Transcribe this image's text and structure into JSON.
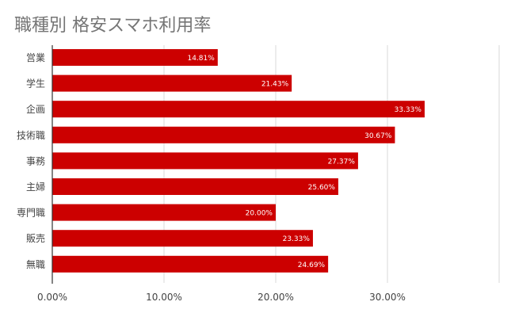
{
  "chart_data": {
    "type": "bar",
    "orientation": "horizontal",
    "title": "職種別 格安スマホ利用率",
    "categories": [
      "営業",
      "学生",
      "企画",
      "技術職",
      "事務",
      "主婦",
      "専門職",
      "販売",
      "無職"
    ],
    "values": [
      14.81,
      21.43,
      33.33,
      30.67,
      27.37,
      25.6,
      20.0,
      23.33,
      24.69
    ],
    "data_labels": [
      "14.81%",
      "21.43%",
      "33.33%",
      "30.67%",
      "27.37%",
      "25.60%",
      "20.00%",
      "23.33%",
      "24.69%"
    ],
    "x_ticks": [
      0,
      10,
      20,
      30
    ],
    "x_tick_labels": [
      "0.00%",
      "10.00%",
      "20.00%",
      "30.00%"
    ],
    "xlim": [
      0,
      40
    ],
    "grid": true,
    "legend": "none",
    "bar_color": "#cc0000"
  }
}
